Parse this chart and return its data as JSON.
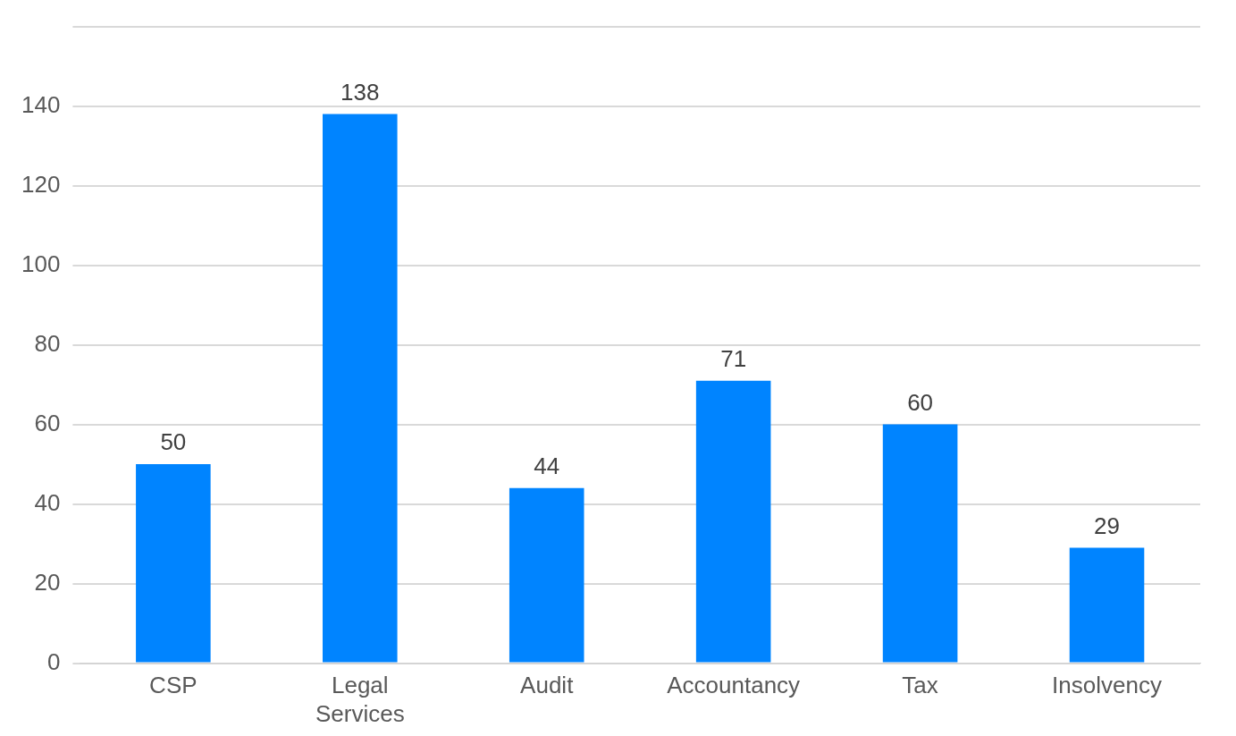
{
  "chart_data": {
    "type": "bar",
    "categories": [
      "CSP",
      "Legal Services",
      "Audit",
      "Accountancy",
      "Tax",
      "Insolvency"
    ],
    "values": [
      50,
      138,
      44,
      71,
      60,
      29
    ],
    "color": "#0084ff",
    "ylim": [
      0,
      160
    ],
    "yticks": [
      0,
      20,
      40,
      60,
      80,
      100,
      120,
      140,
      {
        "value": 160,
        "label": null
      }
    ],
    "grid": "y",
    "data_labels": true
  }
}
